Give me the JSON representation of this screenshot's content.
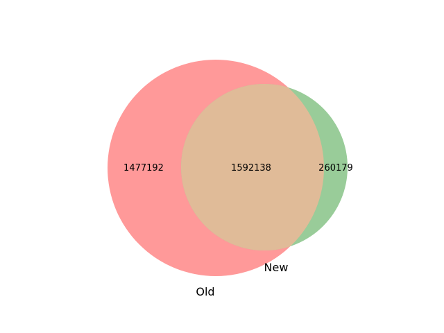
{
  "venn": {
    "sets": [
      {
        "label": "Old",
        "color": "#ff9999"
      },
      {
        "label": "New",
        "color": "#99cc99"
      }
    ],
    "overlap_color": "#e0bb98",
    "regions": {
      "old_only": "1477192",
      "both": "1592138",
      "new_only": "260179"
    }
  }
}
